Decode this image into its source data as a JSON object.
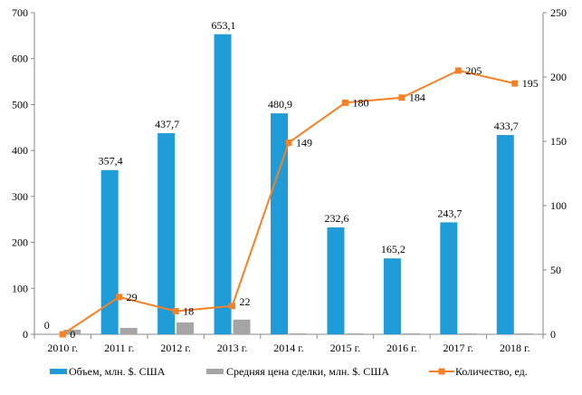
{
  "chart_data": {
    "type": "bar",
    "categories": [
      "2010 г.",
      "2011 г.",
      "2012 г.",
      "2013 г.",
      "2014 г.",
      "2015 г.",
      "2016 г.",
      "2017 г.",
      "2018 г."
    ],
    "series": [
      {
        "name": "Объем, млн. $. США",
        "type": "bar",
        "axis": "left",
        "color": "#1f9bd7",
        "values": [
          0,
          357.4,
          437.7,
          653.1,
          480.9,
          232.6,
          165.2,
          243.7,
          433.7
        ],
        "labels": [
          "0",
          "357,4",
          "437,7",
          "653,1",
          "480,9",
          "232,6",
          "165,2",
          "243,7",
          "433,7"
        ]
      },
      {
        "name": "Средняя цена сделки, млн. $. США",
        "type": "bar",
        "axis": "left",
        "color": "#a5a5a5",
        "values": [
          10,
          14,
          26,
          32,
          2,
          2,
          2,
          2,
          2
        ]
      },
      {
        "name": "Количество, ед.",
        "type": "line",
        "axis": "right",
        "color": "#f58025",
        "values": [
          0,
          29,
          18,
          22,
          149,
          180,
          184,
          205,
          195
        ],
        "labels": [
          "0",
          "29",
          "18",
          "22",
          "149",
          "180",
          "184",
          "205",
          "195"
        ]
      }
    ],
    "ylim_left": [
      0,
      700
    ],
    "yticks_left": [
      0,
      100,
      200,
      300,
      400,
      500,
      600,
      700
    ],
    "ylim_right": [
      0,
      250
    ],
    "yticks_right": [
      0,
      50,
      100,
      150,
      200,
      250
    ],
    "grid": false,
    "legend": "bottom"
  }
}
